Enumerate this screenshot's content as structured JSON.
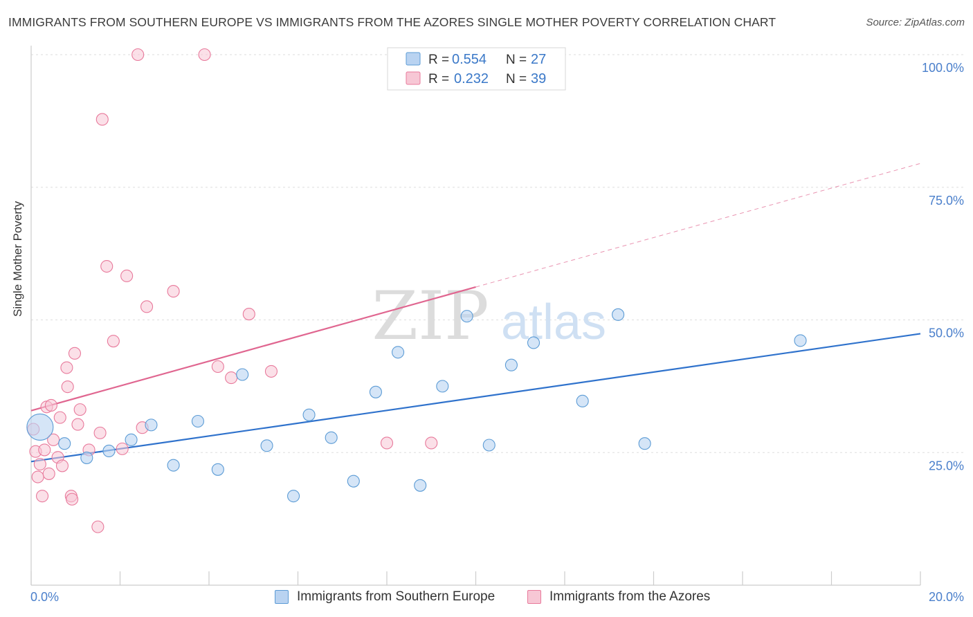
{
  "title": "IMMIGRANTS FROM SOUTHERN EUROPE VS IMMIGRANTS FROM THE AZORES SINGLE MOTHER POVERTY CORRELATION CHART",
  "source": "Source: ZipAtlas.com",
  "watermark": {
    "part1": "ZIP",
    "part2": "atlas"
  },
  "colors": {
    "blue": "#5b9bd5",
    "blue_fill": "#b9d3f1",
    "blue_line": "#2f72cc",
    "pink": "#e8799b",
    "pink_fill": "#f7c7d5",
    "pink_line": "#e06690",
    "axis_text": "#4a7fcb"
  },
  "legend": {
    "rows": [
      {
        "r_label": "R =",
        "r_value": "0.554",
        "n_label": "N =",
        "n_value": "27"
      },
      {
        "r_label": "R =",
        "r_value": "0.232",
        "n_label": "N =",
        "n_value": "39"
      }
    ]
  },
  "bottom_legend": {
    "series1": "Immigrants from Southern Europe",
    "series2": "Immigrants from the Azores"
  },
  "chart_data": {
    "type": "scatter",
    "title": "IMMIGRANTS FROM SOUTHERN EUROPE VS IMMIGRANTS FROM THE AZORES SINGLE MOTHER POVERTY CORRELATION CHART",
    "xlabel": "",
    "ylabel": "Single Mother Poverty",
    "xlim": [
      0,
      20
    ],
    "ylim": [
      0,
      100
    ],
    "x_tick_labels": [
      "0.0%",
      "20.0%"
    ],
    "y_ticks": [
      25,
      50,
      75,
      100
    ],
    "y_tick_labels": [
      "25.0%",
      "50.0%",
      "75.0%",
      "100.0%"
    ],
    "grid": true,
    "legend_position": "top-center",
    "series": [
      {
        "name": "Immigrants from Southern Europe",
        "R": 0.554,
        "N": 27,
        "trend": {
          "x": [
            0,
            20
          ],
          "y": [
            23.3,
            47.4
          ],
          "dashed_extension": false
        },
        "points": [
          {
            "x": 0.2,
            "y": 29.8,
            "big": true
          },
          {
            "x": 0.75,
            "y": 26.7
          },
          {
            "x": 1.25,
            "y": 24.0
          },
          {
            "x": 1.75,
            "y": 25.3
          },
          {
            "x": 2.25,
            "y": 27.4
          },
          {
            "x": 2.7,
            "y": 30.2
          },
          {
            "x": 3.2,
            "y": 22.6
          },
          {
            "x": 3.75,
            "y": 30.9
          },
          {
            "x": 4.2,
            "y": 21.8
          },
          {
            "x": 4.75,
            "y": 39.7
          },
          {
            "x": 5.3,
            "y": 26.3
          },
          {
            "x": 5.9,
            "y": 16.8
          },
          {
            "x": 6.25,
            "y": 32.1
          },
          {
            "x": 6.75,
            "y": 27.8
          },
          {
            "x": 7.25,
            "y": 19.6
          },
          {
            "x": 7.75,
            "y": 36.4
          },
          {
            "x": 8.25,
            "y": 43.9
          },
          {
            "x": 8.75,
            "y": 18.8
          },
          {
            "x": 9.25,
            "y": 37.5
          },
          {
            "x": 9.8,
            "y": 50.7
          },
          {
            "x": 10.3,
            "y": 26.4
          },
          {
            "x": 10.8,
            "y": 41.5
          },
          {
            "x": 11.3,
            "y": 45.7
          },
          {
            "x": 12.4,
            "y": 34.7
          },
          {
            "x": 13.2,
            "y": 51.0
          },
          {
            "x": 13.8,
            "y": 26.7
          },
          {
            "x": 17.3,
            "y": 46.1
          }
        ]
      },
      {
        "name": "Immigrants from the Azores",
        "R": 0.232,
        "N": 39,
        "trend": {
          "x": [
            0,
            10
          ],
          "y": [
            32.9,
            56.2
          ],
          "dashed_extension": {
            "x": [
              10,
              20
            ],
            "y": [
              56.2,
              79.5
            ]
          }
        },
        "points": [
          {
            "x": 0.05,
            "y": 29.4
          },
          {
            "x": 0.1,
            "y": 25.2
          },
          {
            "x": 0.15,
            "y": 20.4
          },
          {
            "x": 0.2,
            "y": 22.8
          },
          {
            "x": 0.25,
            "y": 16.8
          },
          {
            "x": 0.3,
            "y": 25.5
          },
          {
            "x": 0.35,
            "y": 33.6
          },
          {
            "x": 0.4,
            "y": 21.0
          },
          {
            "x": 0.45,
            "y": 33.9
          },
          {
            "x": 0.5,
            "y": 27.4
          },
          {
            "x": 0.6,
            "y": 24.1
          },
          {
            "x": 0.65,
            "y": 31.6
          },
          {
            "x": 0.7,
            "y": 22.5
          },
          {
            "x": 0.8,
            "y": 41.0
          },
          {
            "x": 0.82,
            "y": 37.4
          },
          {
            "x": 0.9,
            "y": 16.8
          },
          {
            "x": 0.92,
            "y": 16.2
          },
          {
            "x": 0.98,
            "y": 43.7
          },
          {
            "x": 1.05,
            "y": 30.3
          },
          {
            "x": 1.1,
            "y": 33.1
          },
          {
            "x": 1.3,
            "y": 25.5
          },
          {
            "x": 1.5,
            "y": 11.0
          },
          {
            "x": 1.55,
            "y": 28.7
          },
          {
            "x": 1.6,
            "y": 87.8
          },
          {
            "x": 1.7,
            "y": 60.1
          },
          {
            "x": 1.85,
            "y": 46.0
          },
          {
            "x": 2.05,
            "y": 25.7
          },
          {
            "x": 2.15,
            "y": 58.3
          },
          {
            "x": 2.4,
            "y": 100.0
          },
          {
            "x": 2.5,
            "y": 29.7
          },
          {
            "x": 2.6,
            "y": 52.5
          },
          {
            "x": 3.2,
            "y": 55.4
          },
          {
            "x": 3.9,
            "y": 100.0
          },
          {
            "x": 4.2,
            "y": 41.2
          },
          {
            "x": 4.5,
            "y": 39.1
          },
          {
            "x": 4.9,
            "y": 51.1
          },
          {
            "x": 5.4,
            "y": 40.3
          },
          {
            "x": 8.0,
            "y": 26.8
          },
          {
            "x": 9.0,
            "y": 26.8
          }
        ]
      }
    ]
  }
}
